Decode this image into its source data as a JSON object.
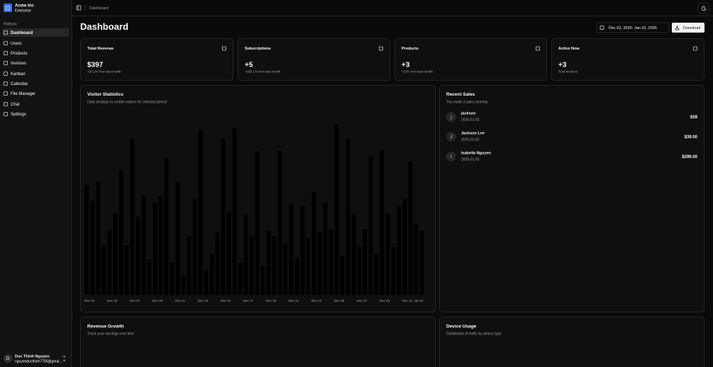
{
  "sidebar": {
    "team": {
      "name": "Acme Inc",
      "plan": "Enterprise"
    },
    "group_label": "Platform",
    "nav": [
      "Dashboard",
      "Users",
      "Products",
      "Invoices",
      "Kanban",
      "Calendar",
      "File Manager",
      "Chat",
      "Settings"
    ],
    "user": {
      "initial": "D",
      "name": "Duc Thinh Nguyen",
      "email": "nguyenducthinh7705@gmai..."
    }
  },
  "header": {
    "breadcrumb": "Dashboard"
  },
  "page": {
    "title": "Dashboard",
    "date_range": "Dec 02, 2025- Jan 01, 2026",
    "download": "Download"
  },
  "stats": [
    {
      "title": "Total Revenue",
      "value": "$397",
      "note": "+20.1% from last month"
    },
    {
      "title": "Subscriptions",
      "value": "+5",
      "note": "+180.1% from last month"
    },
    {
      "title": "Products",
      "value": "+3",
      "note": "+19% from last month"
    },
    {
      "title": "Active Now",
      "value": "+3",
      "note": "Total invoices"
    }
  ],
  "recent_sales": {
    "title": "Recent Sales",
    "subtitle": "You made 3 sales recently.",
    "items": [
      {
        "initial": "j",
        "name": "jackson",
        "date": "2026-01-02",
        "amount": "$59"
      },
      {
        "initial": "J",
        "name": "Jackson Lee",
        "date": "2026-01-02",
        "amount": "$39.00"
      },
      {
        "initial": "I",
        "name": "Isabella Nguyen",
        "date": "2026-01-03",
        "amount": "$299.00"
      }
    ]
  },
  "cards": [
    {
      "title": "Revenue Growth",
      "subtitle": "Track your earnings over time"
    },
    {
      "title": "Device Usage",
      "subtitle": "Distribution of traffic by device type"
    }
  ],
  "chart_data": {
    "type": "bar",
    "title": "Visitor Statistics",
    "subtitle": "Daily desktop vs mobile visitors for selected period",
    "categories": [
      "Dec 03",
      null,
      "Dec 05",
      null,
      "Dec 07",
      null,
      "Dec 09",
      null,
      "Dec 11",
      null,
      "Dec 13",
      null,
      "Dec 15",
      null,
      "Dec 17",
      null,
      "Dec 19",
      null,
      "Dec 21",
      null,
      "Dec 23",
      null,
      "Dec 25",
      null,
      "Dec 27",
      null,
      "Dec 29",
      null,
      "Dec 31",
      "Jan 01"
    ],
    "series": [
      {
        "color": "#000000",
        "values": [
          62,
          64,
          36,
          70,
          88,
          56,
          52,
          77,
          64,
          33,
          93,
          23,
          88,
          94,
          45,
          81,
          36,
          81,
          51,
          50,
          58,
          52,
          96,
          88,
          27,
          78,
          82,
          27,
          54,
          40
        ]
      },
      {
        "color": "#000000",
        "values": [
          53,
          28,
          46,
          28,
          44,
          20,
          56,
          18,
          11,
          54,
          14,
          35,
          47,
          18,
          33,
          16,
          33,
          29,
          21,
          32,
          35,
          37,
          22,
          45,
          37,
          23,
          46,
          50,
          75,
          36
        ]
      }
    ],
    "ylim": [
      0,
      100
    ]
  }
}
